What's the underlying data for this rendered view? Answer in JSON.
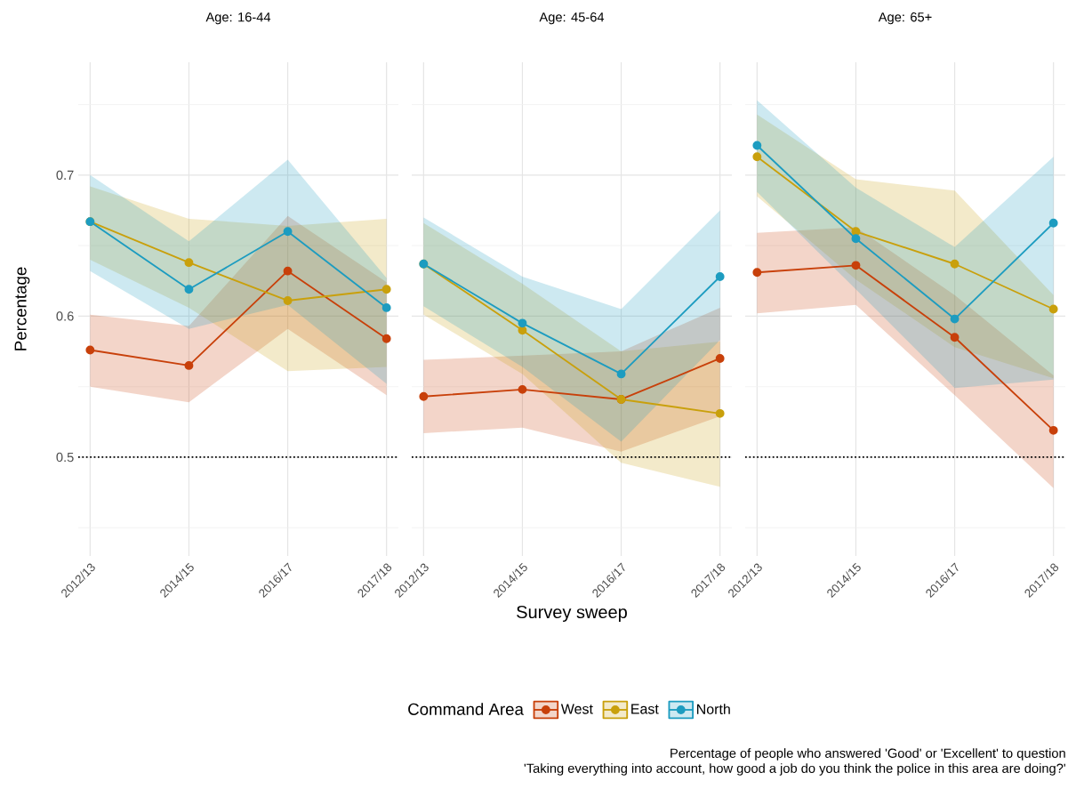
{
  "chart_data": [
    {
      "type": "line",
      "title": "Age: 16-44",
      "ylabel": "Percentage",
      "categories": [
        "2012/13",
        "2014/15",
        "2016/17",
        "2017/18"
      ],
      "ylim": [
        0.43,
        0.78
      ],
      "yticks": [
        0.5,
        0.6,
        0.7
      ],
      "grid": true,
      "marker": "circle",
      "ref_lines": [
        {
          "axis": "y",
          "value": 0.5,
          "color": "#000000",
          "line_style": "dotted"
        }
      ],
      "series": [
        {
          "color": "#c8400a",
          "values": [
            0.576,
            0.565,
            0.632,
            0.584
          ],
          "lower": [
            0.55,
            0.539,
            0.591,
            0.544
          ],
          "upper": [
            0.601,
            0.593,
            0.671,
            0.624
          ]
        },
        {
          "color": "#c9a00c",
          "values": [
            0.667,
            0.638,
            0.611,
            0.619
          ],
          "lower": [
            0.64,
            0.606,
            0.561,
            0.564
          ],
          "upper": [
            0.692,
            0.669,
            0.664,
            0.669
          ]
        },
        {
          "color": "#1d9cc0",
          "values": [
            0.667,
            0.619,
            0.66,
            0.606
          ],
          "lower": [
            0.632,
            0.591,
            0.608,
            0.552
          ],
          "upper": [
            0.7,
            0.653,
            0.711,
            0.627
          ]
        }
      ]
    },
    {
      "type": "line",
      "title": "Age: 45-64",
      "xlabel": "Survey sweep",
      "legend_title": "Command Area",
      "legend": "bottom",
      "tick_labels": "x",
      "categories": [
        "2012/13",
        "2014/15",
        "2016/17",
        "2017/18"
      ],
      "ylim": [
        0.43,
        0.78
      ],
      "yticks": [
        0.5,
        0.6,
        0.7
      ],
      "grid": true,
      "marker": "circle",
      "ref_lines": [
        {
          "axis": "y",
          "value": 0.5,
          "color": "#000000",
          "line_style": "dotted"
        }
      ],
      "series": [
        {
          "name": "West",
          "color": "#c8400a",
          "values": [
            0.543,
            0.548,
            0.541,
            0.57
          ],
          "lower": [
            0.517,
            0.521,
            0.504,
            0.529
          ],
          "upper": [
            0.569,
            0.572,
            0.575,
            0.606
          ]
        },
        {
          "name": "East",
          "color": "#c9a00c",
          "values": [
            0.637,
            0.59,
            0.541,
            0.531
          ],
          "lower": [
            0.601,
            0.559,
            0.496,
            0.479
          ],
          "upper": [
            0.666,
            0.623,
            0.575,
            0.582
          ]
        },
        {
          "name": "North",
          "color": "#1d9cc0",
          "values": [
            0.637,
            0.595,
            0.559,
            0.628
          ],
          "lower": [
            0.607,
            0.564,
            0.511,
            0.583
          ],
          "upper": [
            0.67,
            0.628,
            0.605,
            0.675
          ]
        }
      ]
    },
    {
      "type": "line",
      "title": "Age: 65+",
      "tick_labels": "x",
      "categories": [
        "2012/13",
        "2014/15",
        "2016/17",
        "2017/18"
      ],
      "ylim": [
        0.43,
        0.78
      ],
      "yticks": [
        0.5,
        0.6,
        0.7
      ],
      "grid": true,
      "marker": "circle",
      "ref_lines": [
        {
          "axis": "y",
          "value": 0.5,
          "color": "#000000",
          "line_style": "dotted"
        }
      ],
      "annotations": [
        "Percentage of people who answered 'Good' or 'Excellent' to question",
        "'Taking everything into account, how good a job do you think the police in this area are doing?'"
      ],
      "series": [
        {
          "color": "#c8400a",
          "values": [
            0.631,
            0.636,
            0.585,
            0.519
          ],
          "lower": [
            0.602,
            0.608,
            0.544,
            0.478
          ],
          "upper": [
            0.659,
            0.663,
            0.615,
            0.558
          ]
        },
        {
          "color": "#c9a00c",
          "values": [
            0.713,
            0.66,
            0.637,
            0.605
          ],
          "lower": [
            0.685,
            0.626,
            0.578,
            0.556
          ],
          "upper": [
            0.743,
            0.697,
            0.689,
            0.615
          ]
        },
        {
          "color": "#1d9cc0",
          "values": [
            0.721,
            0.655,
            0.598,
            0.666
          ],
          "lower": [
            0.688,
            0.619,
            0.549,
            0.555
          ],
          "upper": [
            0.753,
            0.691,
            0.649,
            0.713
          ]
        }
      ]
    }
  ]
}
